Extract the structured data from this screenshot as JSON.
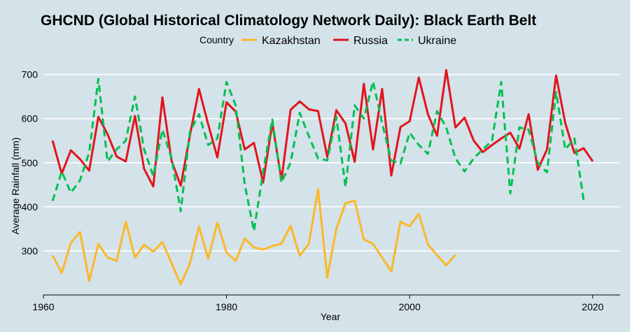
{
  "chart_data": {
    "type": "line",
    "title": "GHCND (Global Historical Climatology Network Daily): Black Earth Belt",
    "xlabel": "Year",
    "ylabel": "Average Rainfall (mm)",
    "xlim": [
      1960,
      2023
    ],
    "ylim": [
      200,
      720
    ],
    "x_ticks": [
      1960,
      1980,
      2000,
      2020
    ],
    "y_ticks": [
      300,
      400,
      500,
      600,
      700
    ],
    "grid": "horizontal major lines",
    "legend": {
      "title": "Country",
      "position": "top"
    },
    "series": [
      {
        "name": "Kazakhstan",
        "color": "#fbb829",
        "dash": "solid",
        "x": [
          1961,
          1962,
          1963,
          1964,
          1965,
          1966,
          1967,
          1968,
          1969,
          1970,
          1971,
          1972,
          1973,
          1974,
          1975,
          1976,
          1977,
          1978,
          1979,
          1980,
          1981,
          1982,
          1983,
          1984,
          1985,
          1986,
          1987,
          1988,
          1989,
          1990,
          1991,
          1992,
          1993,
          1994,
          1995,
          1996,
          1997,
          1998,
          1999,
          2000,
          2001,
          2002,
          2003,
          2004,
          2005
        ],
        "y": [
          290,
          250,
          318,
          343,
          232,
          316,
          285,
          277,
          366,
          285,
          314,
          298,
          320,
          272,
          224,
          272,
          355,
          282,
          364,
          296,
          277,
          328,
          308,
          303,
          311,
          316,
          357,
          289,
          316,
          440,
          239,
          350,
          408,
          414,
          326,
          316,
          285,
          253,
          366,
          356,
          384,
          315,
          290,
          267,
          291
        ]
      },
      {
        "name": "Russia",
        "color": "#e2141c",
        "dash": "solid",
        "x": [
          1961,
          1962,
          1963,
          1964,
          1965,
          1966,
          1967,
          1968,
          1969,
          1970,
          1971,
          1972,
          1973,
          1974,
          1975,
          1976,
          1977,
          1978,
          1979,
          1980,
          1981,
          1982,
          1983,
          1984,
          1985,
          1986,
          1987,
          1988,
          1989,
          1990,
          1991,
          1992,
          1993,
          1994,
          1995,
          1996,
          1997,
          1998,
          1999,
          2000,
          2001,
          2002,
          2003,
          2004,
          2005,
          2006,
          2007,
          2008,
          2009,
          2010,
          2011,
          2012,
          2013,
          2014,
          2015,
          2016,
          2017,
          2018,
          2019,
          2020
        ],
        "y": [
          550,
          475,
          528,
          508,
          482,
          604,
          565,
          514,
          503,
          606,
          486,
          446,
          648,
          504,
          448,
          562,
          667,
          587,
          512,
          637,
          616,
          530,
          545,
          455,
          590,
          461,
          620,
          639,
          621,
          617,
          513,
          619,
          589,
          502,
          679,
          530,
          667,
          471,
          581,
          594,
          693,
          610,
          561,
          710,
          580,
          602,
          550,
          524,
          540,
          555,
          568,
          532,
          610,
          484,
          530,
          698,
          590,
          522,
          533,
          503
        ]
      },
      {
        "name": "Ukraine",
        "color": "#00c050",
        "dash": "dashed",
        "x": [
          1961,
          1962,
          1963,
          1964,
          1965,
          1966,
          1967,
          1968,
          1969,
          1970,
          1971,
          1972,
          1973,
          1974,
          1975,
          1976,
          1977,
          1978,
          1979,
          1980,
          1981,
          1982,
          1983,
          1984,
          1985,
          1986,
          1987,
          1988,
          1989,
          1990,
          1991,
          1992,
          1993,
          1994,
          1995,
          1996,
          1997,
          1998,
          1999,
          2000,
          2001,
          2002,
          2003,
          2004,
          2005,
          2006,
          2007,
          2008,
          2009,
          2010,
          2011,
          2012,
          2013,
          2014,
          2015,
          2016,
          2017,
          2018,
          2019
        ],
        "y": [
          413,
          480,
          432,
          460,
          523,
          690,
          503,
          530,
          550,
          650,
          530,
          470,
          575,
          510,
          390,
          570,
          610,
          540,
          555,
          683,
          630,
          450,
          345,
          480,
          598,
          455,
          500,
          613,
          560,
          510,
          505,
          604,
          445,
          630,
          600,
          684,
          590,
          505,
          498,
          568,
          540,
          520,
          617,
          580,
          510,
          480,
          510,
          530,
          550,
          683,
          430,
          580,
          575,
          500,
          478,
          660,
          530,
          555,
          416
        ]
      }
    ]
  }
}
